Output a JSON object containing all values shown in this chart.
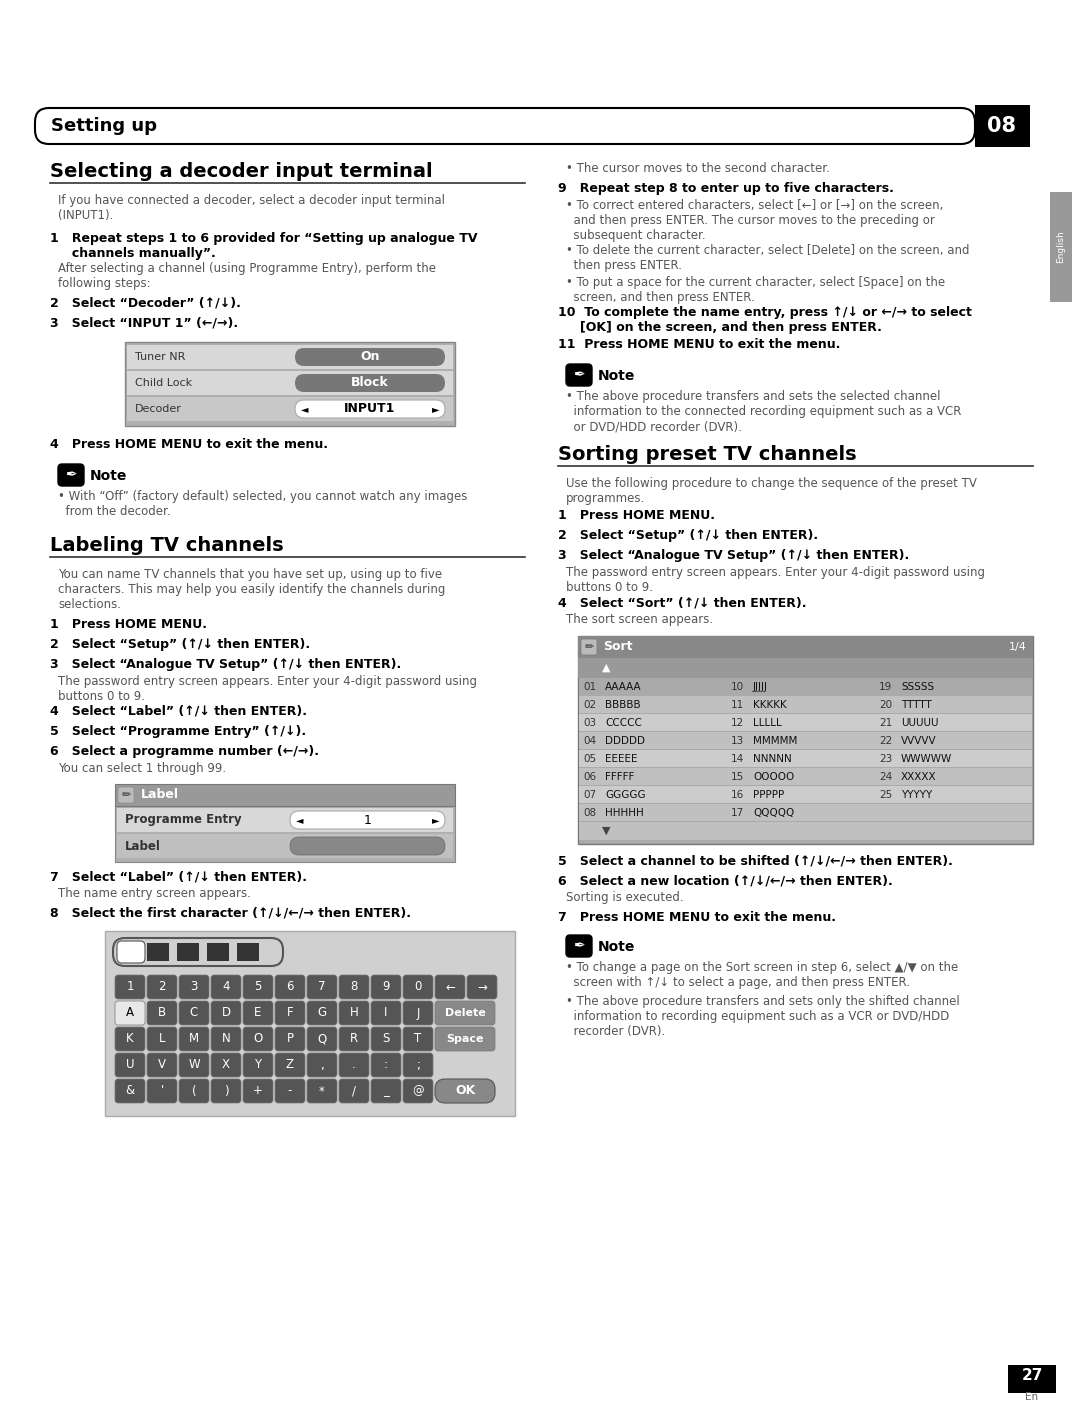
{
  "page_title": "Setting up",
  "page_num": "08",
  "page_footer": "27",
  "bg_color": "#ffffff",
  "section1_title": "Selecting a decoder input terminal",
  "section2_title": "Labeling TV channels",
  "section3_title": "Sorting preset TV channels",
  "right_note_text": "• The above procedure transfers and sets the selected channel\n  information to the connected recording equipment such as a VCR\n  or DVD/HDD recorder (DVR).",
  "decoder_table_labels": [
    "Tuner NR",
    "Child Lock",
    "Decoder"
  ],
  "decoder_table_values": [
    "On",
    "Block",
    "INPUT1"
  ],
  "label_table_labels": [
    "Programme Entry",
    "Label"
  ],
  "label_table_values": [
    "1",
    ""
  ],
  "sort_data": [
    [
      "01",
      "AAAAA",
      "10",
      "JJJJJ",
      "19",
      "SSSSS"
    ],
    [
      "02",
      "BBBBB",
      "11",
      "KKKKK",
      "20",
      "TTTTT"
    ],
    [
      "03",
      "CCCCC",
      "12",
      "LLLLL",
      "21",
      "UUUUU"
    ],
    [
      "04",
      "DDDDD",
      "13",
      "MMMMM",
      "22",
      "VVVVV"
    ],
    [
      "05",
      "EEEEE",
      "14",
      "NNNNN",
      "23",
      "WWWWW"
    ],
    [
      "06",
      "FFFFF",
      "15",
      "OOOOO",
      "24",
      "XXXXX"
    ],
    [
      "07",
      "GGGGG",
      "16",
      "PPPPP",
      "25",
      "YYYYY"
    ],
    [
      "08",
      "HHHHH",
      "17",
      "QQQQQ",
      "",
      ""
    ]
  ]
}
